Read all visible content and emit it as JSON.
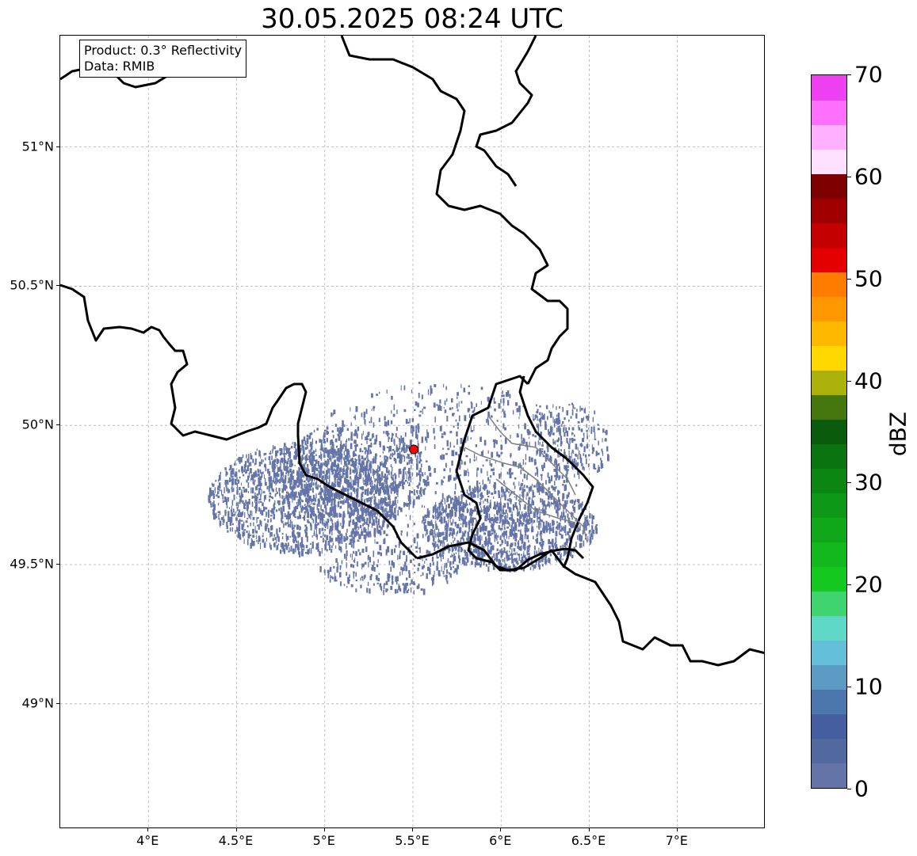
{
  "title": "30.05.2025 08:24 UTC",
  "infobox": {
    "product": "Product: 0.3° Reflectivity",
    "data": "Data: RMIB"
  },
  "map": {
    "lon_range": [
      3.5,
      7.5
    ],
    "lat_range": [
      48.55,
      51.4
    ],
    "x_ticks": [
      {
        "value": 4.0,
        "label": "4°E"
      },
      {
        "value": 4.5,
        "label": "4.5°E"
      },
      {
        "value": 5.0,
        "label": "5°E"
      },
      {
        "value": 5.5,
        "label": "5.5°E"
      },
      {
        "value": 6.0,
        "label": "6°E"
      },
      {
        "value": 6.5,
        "label": "6.5°E"
      },
      {
        "value": 7.0,
        "label": "7°E"
      }
    ],
    "y_ticks": [
      {
        "value": 51.0,
        "label": "51°N"
      },
      {
        "value": 50.5,
        "label": "50.5°N"
      },
      {
        "value": 50.0,
        "label": "50°N"
      },
      {
        "value": 49.5,
        "label": "49.5°N"
      },
      {
        "value": 49.0,
        "label": "49°N"
      }
    ],
    "radar_site": {
      "lon": 5.505,
      "lat": 49.914,
      "color": "#ff0000"
    },
    "echo_color": "#6474a8",
    "border_color": "#000000",
    "gridline_style": "dashed gray"
  },
  "colorbar": {
    "label": "dBZ",
    "min": 0,
    "max": 70,
    "ticks": [
      {
        "value": 0,
        "label": "0"
      },
      {
        "value": 10,
        "label": "10"
      },
      {
        "value": 20,
        "label": "20"
      },
      {
        "value": 30,
        "label": "30"
      },
      {
        "value": 40,
        "label": "40"
      },
      {
        "value": 50,
        "label": "50"
      },
      {
        "value": 60,
        "label": "60"
      },
      {
        "value": 70,
        "label": "70"
      }
    ],
    "colors": [
      "#6474a8",
      "#52699f",
      "#445ea0",
      "#4b77ae",
      "#5a9ac3",
      "#64c0da",
      "#60d8c8",
      "#3fd470",
      "#14c81f",
      "#12b81c",
      "#10a818",
      "#0e9818",
      "#0c8612",
      "#0a7410",
      "#0a5c0c",
      "#46760e",
      "#adb20a",
      "#ffd800",
      "#ffb800",
      "#ff9800",
      "#ff7c00",
      "#e40000",
      "#c40000",
      "#a00000",
      "#7e0000",
      "#ffe0ff",
      "#ffb0ff",
      "#ff70ff",
      "#ee3ff0"
    ]
  }
}
